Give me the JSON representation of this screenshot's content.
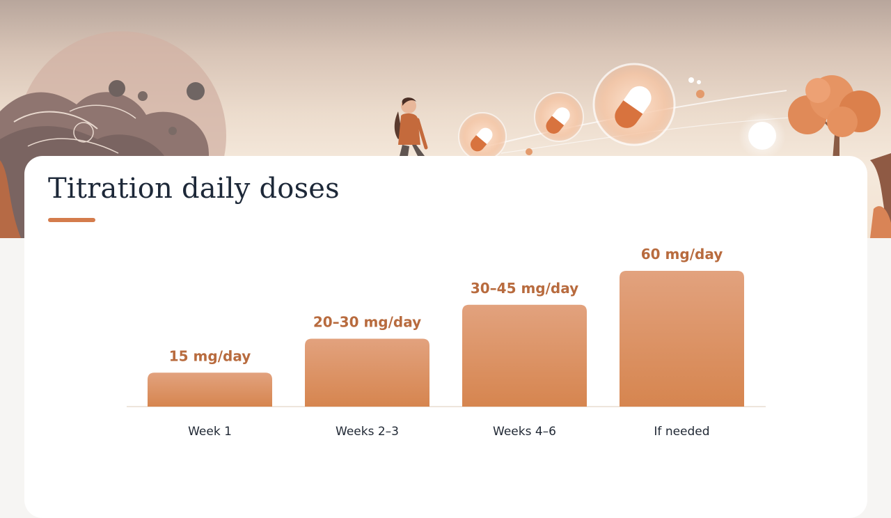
{
  "page": {
    "title": "Titration daily doses"
  },
  "colors": {
    "bar_top": "#e2a27e",
    "bar_bottom": "#d6854f",
    "value_label": "#b86b3e",
    "accent": "#d47c4c"
  },
  "chart_data": {
    "type": "bar",
    "title": "Titration daily doses",
    "xlabel": "",
    "ylabel": "",
    "categories": [
      "Week 1",
      "Weeks 2–3",
      "Weeks 4–6",
      "If needed"
    ],
    "values": [
      15,
      30,
      45,
      60
    ],
    "value_labels": [
      "15 mg/day",
      "20–30 mg/day",
      "30–45 mg/day",
      "60 mg/day"
    ],
    "unit": "mg/day",
    "ylim": [
      0,
      60
    ],
    "grid": false,
    "legend": "none"
  }
}
